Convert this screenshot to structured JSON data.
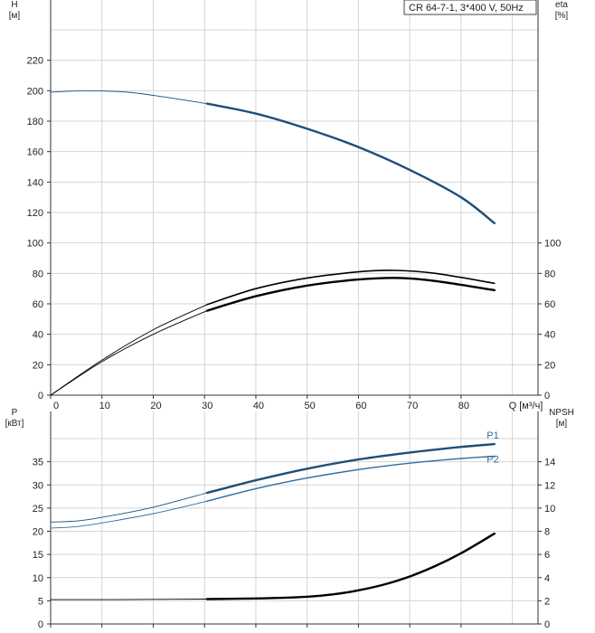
{
  "chart_data": [
    {
      "type": "line",
      "title": "CR 64-7-1, 3*400 V, 50Hz",
      "xlabel": "Q [м³/ч]",
      "xlim": [
        0,
        95
      ],
      "xticks": [
        0,
        10,
        20,
        30,
        40,
        50,
        60,
        70,
        80
      ],
      "y_left": {
        "label": "H",
        "unit": "[м]",
        "ylim": [
          0,
          240
        ],
        "ticks": [
          0,
          20,
          40,
          60,
          80,
          100,
          120,
          140,
          160,
          180,
          200,
          220
        ]
      },
      "y_right": {
        "label": "eta",
        "unit": "[%]",
        "ylim": [
          0,
          240
        ],
        "ticks": [
          0,
          20,
          40,
          60,
          80,
          100
        ]
      },
      "grid": true,
      "series": [
        {
          "key": "h_thin",
          "axis": "left",
          "color": "#1f4e79",
          "width": 0.9,
          "x": [
            0,
            7,
            15,
            22,
            30.5
          ],
          "y": [
            199,
            200,
            199,
            196,
            191.5
          ]
        },
        {
          "key": "h_thick",
          "axis": "left",
          "color": "#1f4e79",
          "width": 2.4,
          "x": [
            30.5,
            40,
            50,
            60,
            70,
            80,
            86.5
          ],
          "y": [
            191.5,
            185,
            175,
            163,
            148,
            130,
            113
          ]
        },
        {
          "key": "eta1_thin",
          "axis": "right",
          "color": "#000000",
          "width": 0.9,
          "x": [
            0,
            10,
            20,
            30.5
          ],
          "y": [
            0,
            23,
            43,
            59.5
          ]
        },
        {
          "key": "eta1_thick",
          "axis": "right",
          "color": "#000000",
          "width": 1.6,
          "x": [
            30.5,
            40,
            50,
            60,
            67,
            75,
            86.5
          ],
          "y": [
            59.5,
            70,
            77,
            81,
            82,
            80,
            73.5
          ]
        },
        {
          "key": "eta2_thin",
          "axis": "right",
          "color": "#000000",
          "width": 0.9,
          "x": [
            0,
            10,
            20,
            30.5
          ],
          "y": [
            0,
            22,
            40,
            55.5
          ]
        },
        {
          "key": "eta2_thick",
          "axis": "right",
          "color": "#000000",
          "width": 2.4,
          "x": [
            30.5,
            40,
            50,
            60,
            68,
            75,
            86.5
          ],
          "y": [
            55.5,
            65,
            72,
            76,
            77,
            75,
            69
          ]
        }
      ]
    },
    {
      "type": "line",
      "xlim": [
        0,
        95
      ],
      "xticks": [
        0,
        10,
        20,
        30,
        40,
        50,
        60,
        70,
        80
      ],
      "y_left": {
        "label": "P",
        "unit": "[кВт]",
        "ylim": [
          0,
          40
        ],
        "ticks": [
          0,
          5,
          10,
          15,
          20,
          25,
          30,
          35
        ]
      },
      "y_right": {
        "label": "NPSH",
        "unit": "[м]",
        "ylim": [
          0,
          16
        ],
        "ticks": [
          0,
          2,
          4,
          6,
          8,
          10,
          12,
          14
        ]
      },
      "grid": true,
      "series": [
        {
          "key": "p1_thin",
          "axis": "left",
          "color": "#1f4e79",
          "width": 0.9,
          "x": [
            0,
            5,
            10,
            20,
            30.5
          ],
          "y": [
            22,
            22.2,
            23,
            25.2,
            28.3
          ]
        },
        {
          "key": "p1_thick",
          "axis": "left",
          "color": "#1f4e79",
          "width": 2.4,
          "x": [
            30.5,
            40,
            50,
            60,
            70,
            80,
            86.5
          ],
          "y": [
            28.3,
            31,
            33.5,
            35.5,
            37,
            38.2,
            38.8
          ]
        },
        {
          "key": "p2_thin",
          "axis": "left",
          "color": "#2e6da4",
          "width": 0.9,
          "x": [
            0,
            5,
            10,
            20,
            30.5
          ],
          "y": [
            20.7,
            21,
            21.8,
            23.8,
            26.5
          ]
        },
        {
          "key": "p2_thick",
          "axis": "left",
          "color": "#2e6da4",
          "width": 1.4,
          "x": [
            30.5,
            40,
            50,
            60,
            70,
            80,
            86.5
          ],
          "y": [
            26.5,
            29.2,
            31.5,
            33.3,
            34.7,
            35.7,
            36.2
          ]
        },
        {
          "key": "npsh_thin",
          "axis": "right",
          "color": "#000000",
          "width": 0.9,
          "x": [
            0,
            10,
            20,
            30.5
          ],
          "y": [
            2.1,
            2.1,
            2.12,
            2.15
          ]
        },
        {
          "key": "npsh_thick",
          "axis": "right",
          "color": "#000000",
          "width": 2.4,
          "x": [
            30.5,
            40,
            50,
            55,
            60,
            65,
            70,
            75,
            80,
            86.5
          ],
          "y": [
            2.15,
            2.2,
            2.35,
            2.55,
            2.9,
            3.4,
            4.1,
            5.0,
            6.1,
            7.8
          ]
        }
      ],
      "labels": [
        {
          "text": "P1",
          "x": 85,
          "y": 40,
          "axis": "left",
          "color": "#2e6da4"
        },
        {
          "text": "P2",
          "x": 85,
          "y": 34.8,
          "axis": "left",
          "color": "#2e6da4"
        }
      ]
    }
  ]
}
